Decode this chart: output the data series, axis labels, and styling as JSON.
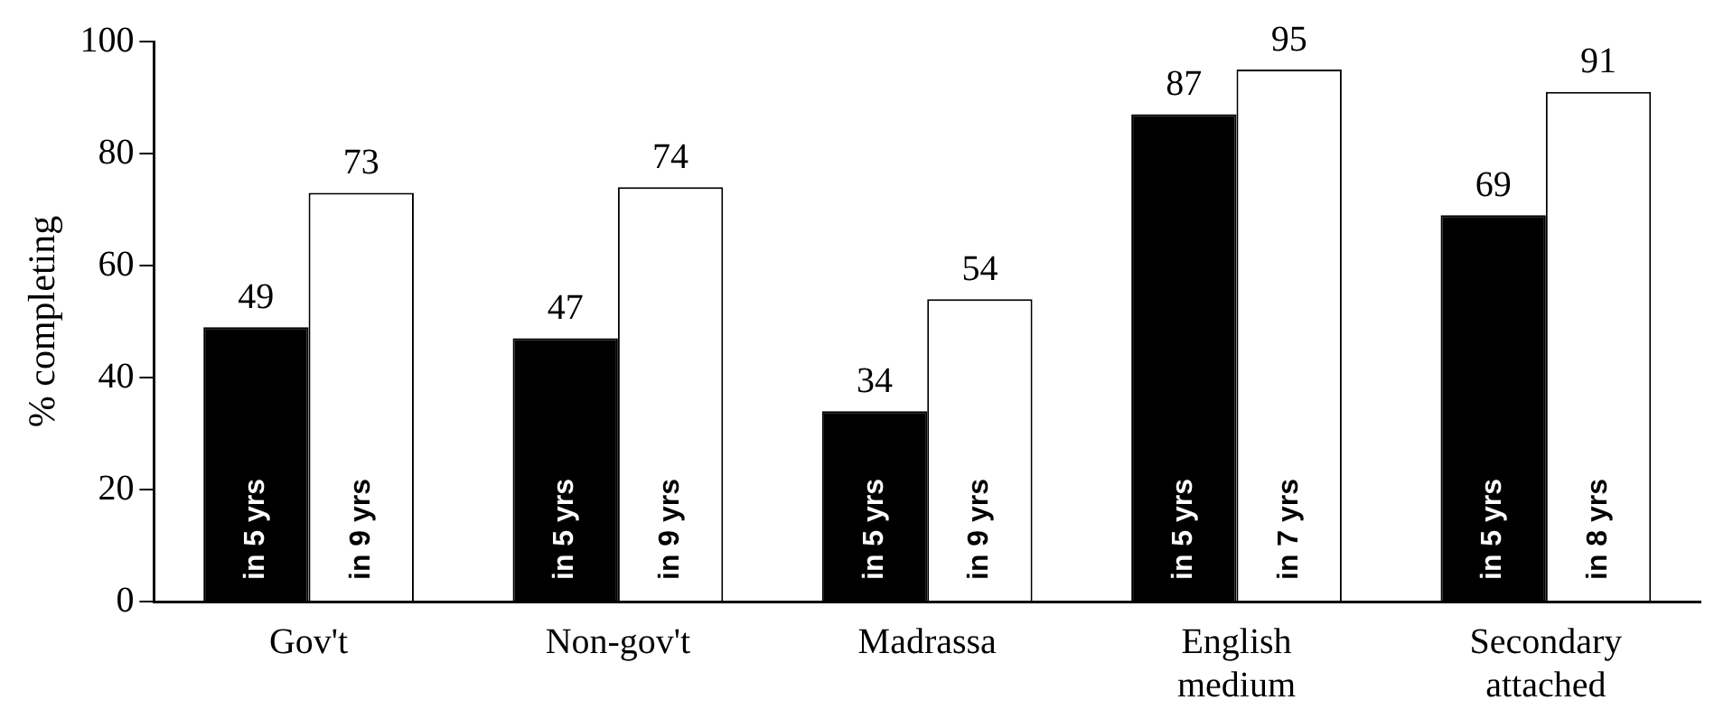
{
  "chart_data": {
    "type": "bar",
    "ylabel": "% completing",
    "categories": [
      "Gov't",
      "Non-gov't",
      "Madrassa",
      "English\nmedium",
      "Secondary\nattached"
    ],
    "series": [
      {
        "color": "#000000",
        "values": [
          49,
          47,
          34,
          87,
          69
        ]
      },
      {
        "color": "#ffffff",
        "values": [
          73,
          74,
          54,
          95,
          91
        ]
      }
    ],
    "ylim": [
      0,
      100
    ],
    "yticks": [
      0,
      20,
      40,
      60,
      80,
      100
    ],
    "grid": false,
    "legend": false,
    "data_labels": true,
    "annotations": [
      "in 5 yrs",
      "in 9 yrs",
      "in 5 yrs",
      "in 9 yrs",
      "in 5 yrs",
      "in 9 yrs",
      "in 5 yrs",
      "in 7 yrs",
      "in 5 yrs",
      "in 8 yrs"
    ]
  }
}
